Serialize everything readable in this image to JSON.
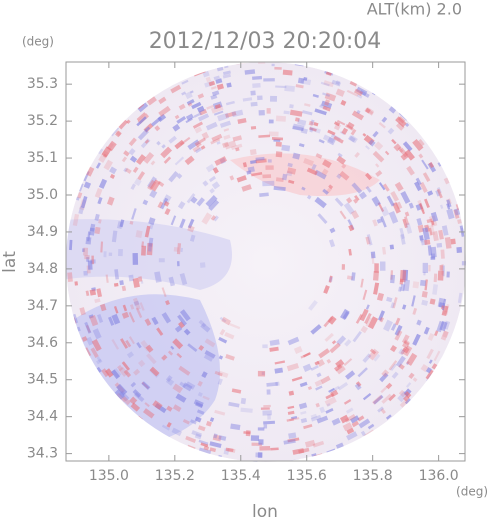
{
  "chart_data": {
    "type": "radar-field",
    "title": "2012/12/03 20:20:04",
    "subtitle": "ALT(km) 2.0",
    "x_label": "lon",
    "y_label": "lat",
    "x_unit": "(deg)",
    "y_unit": "(deg)",
    "xlim": [
      134.87,
      136.08
    ],
    "ylim": [
      34.28,
      35.36
    ],
    "xticks": [
      {
        "value": 135.0,
        "label": "135.0"
      },
      135.2,
      135.4,
      135.6,
      135.8,
      {
        "value": 136.0,
        "label": "136.0"
      }
    ],
    "yticks": [
      34.3,
      34.4,
      34.5,
      34.6,
      34.7,
      34.8,
      34.9,
      {
        "value": 35.0,
        "label": "35.0"
      },
      35.1,
      35.2,
      35.3
    ]
  }
}
